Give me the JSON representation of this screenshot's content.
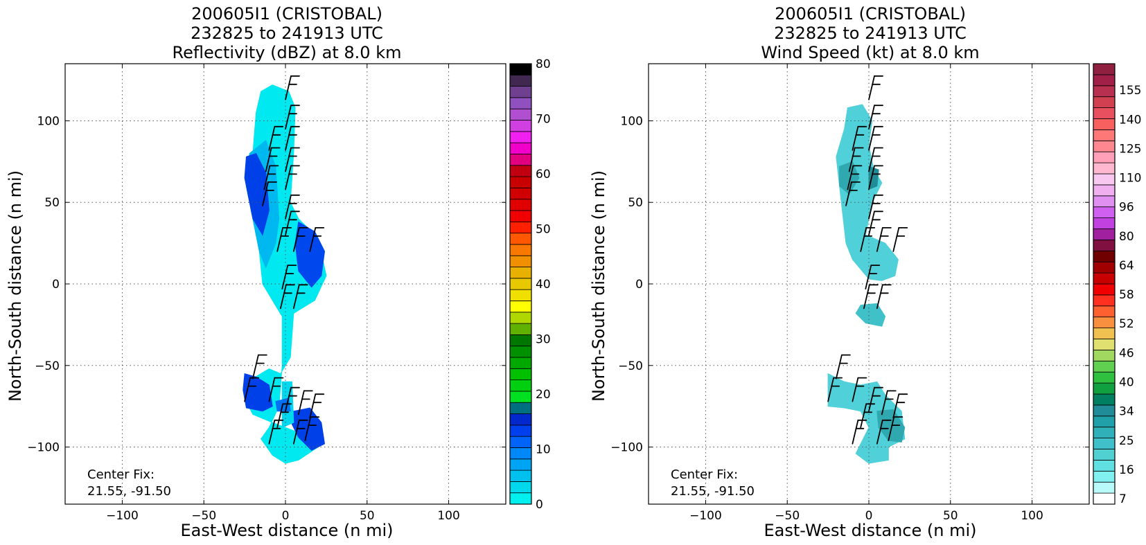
{
  "chart_data": [
    {
      "type": "heatmap",
      "title_lines": [
        "200605I1 (CRISTOBAL)",
        "232825 to 241913 UTC",
        "Reflectivity (dBZ) at 8.0 km"
      ],
      "xlabel": "East-West distance (n mi)",
      "ylabel": "North-South distance (n mi)",
      "xlim": [
        -135,
        135
      ],
      "ylim": [
        -135,
        135
      ],
      "xticks": [
        -100,
        -50,
        0,
        50,
        100
      ],
      "yticks": [
        -100,
        -50,
        0,
        50,
        100
      ],
      "grid": true,
      "annotation": [
        "Center Fix:",
        "21.55, -91.50"
      ],
      "colorbar": {
        "ticks": [
          "0",
          "10",
          "20",
          "30",
          "40",
          "50",
          "60",
          "70",
          "80"
        ],
        "colors": [
          "#00f0f0",
          "#00d8ec",
          "#00c0ee",
          "#00a4f4",
          "#0088f8",
          "#0064f8",
          "#0040ec",
          "#0028cc",
          "#007080",
          "#00e020",
          "#00d010",
          "#00c000",
          "#00a800",
          "#009000",
          "#007800",
          "#60b000",
          "#b0d800",
          "#ffff00",
          "#f0e000",
          "#e8c800",
          "#e8b000",
          "#f09000",
          "#f87800",
          "#ff5800",
          "#ff2000",
          "#f00000",
          "#e00000",
          "#d00000",
          "#c80000",
          "#c00010",
          "#e00080",
          "#f000c8",
          "#f020f0",
          "#d040e0",
          "#b050d0",
          "#9050c0",
          "#704090",
          "#402850",
          "#000000"
        ]
      },
      "field_color": "#00e0f0",
      "regions": [
        {
          "color": "#00e8f0",
          "points": [
            [
              -15,
              118
            ],
            [
              -8,
              122
            ],
            [
              2,
              118
            ],
            [
              6,
              108
            ],
            [
              5,
              80
            ],
            [
              3,
              50
            ],
            [
              8,
              40
            ],
            [
              20,
              28
            ],
            [
              25,
              5
            ],
            [
              18,
              -10
            ],
            [
              5,
              -18
            ],
            [
              3,
              -45
            ],
            [
              -3,
              -55
            ],
            [
              -10,
              -52
            ],
            [
              -20,
              -58
            ],
            [
              -25,
              -70
            ],
            [
              -20,
              -80
            ],
            [
              -8,
              -85
            ],
            [
              5,
              -90
            ],
            [
              15,
              -95
            ],
            [
              20,
              -100
            ],
            [
              8,
              -108
            ],
            [
              0,
              -110
            ],
            [
              -8,
              -105
            ],
            [
              -15,
              -95
            ],
            [
              -10,
              -88
            ],
            [
              -4,
              -75
            ],
            [
              -2,
              -50
            ],
            [
              -2,
              -20
            ],
            [
              -8,
              -10
            ],
            [
              -14,
              0
            ],
            [
              -16,
              20
            ],
            [
              -24,
              60
            ],
            [
              -20,
              80
            ],
            [
              -18,
              105
            ]
          ]
        },
        {
          "color": "#00b8f0",
          "points": [
            [
              -22,
              80
            ],
            [
              -12,
              88
            ],
            [
              -6,
              72
            ],
            [
              -4,
              40
            ],
            [
              -6,
              25
            ],
            [
              -12,
              10
            ],
            [
              -16,
              20
            ],
            [
              -24,
              60
            ]
          ]
        },
        {
          "color": "#0040e8",
          "points": [
            [
              -24,
              78
            ],
            [
              -18,
              80
            ],
            [
              -12,
              68
            ],
            [
              -10,
              45
            ],
            [
              -14,
              30
            ],
            [
              -20,
              40
            ],
            [
              -25,
              65
            ]
          ]
        },
        {
          "color": "#0048ee",
          "points": [
            [
              8,
              38
            ],
            [
              18,
              32
            ],
            [
              24,
              20
            ],
            [
              22,
              5
            ],
            [
              16,
              -2
            ],
            [
              8,
              8
            ],
            [
              6,
              25
            ]
          ]
        },
        {
          "color": "#0040e8",
          "points": [
            [
              -25,
              -55
            ],
            [
              -18,
              -57
            ],
            [
              -10,
              -62
            ],
            [
              -8,
              -75
            ],
            [
              -14,
              -78
            ],
            [
              -24,
              -76
            ],
            [
              -26,
              -65
            ]
          ]
        },
        {
          "color": "#0040e8",
          "points": [
            [
              5,
              -78
            ],
            [
              15,
              -76
            ],
            [
              22,
              -85
            ],
            [
              24,
              -98
            ],
            [
              16,
              -102
            ],
            [
              8,
              -94
            ],
            [
              4,
              -86
            ]
          ]
        },
        {
          "color": "#00d8f0",
          "points": [
            [
              -2,
              -60
            ],
            [
              4,
              -60
            ],
            [
              5,
              -85
            ],
            [
              -2,
              -88
            ]
          ]
        },
        {
          "color": "#0070f4",
          "points": [
            [
              -6,
              -72
            ],
            [
              2,
              -70
            ],
            [
              3,
              -78
            ],
            [
              -5,
              -78
            ]
          ]
        }
      ]
    },
    {
      "type": "heatmap",
      "title_lines": [
        "200605I1 (CRISTOBAL)",
        "232825 to 241913 UTC",
        "Wind Speed (kt) at 8.0 km"
      ],
      "xlabel": "East-West distance (n mi)",
      "ylabel": "North-South distance (n mi)",
      "xlim": [
        -135,
        135
      ],
      "ylim": [
        -135,
        135
      ],
      "xticks": [
        -100,
        -50,
        0,
        50,
        100
      ],
      "yticks": [
        -100,
        -50,
        0,
        50,
        100
      ],
      "grid": true,
      "annotation": [
        "Center Fix:",
        "21.55, -91.50"
      ],
      "colorbar": {
        "ticks": [
          "7",
          "16",
          "25",
          "34",
          "40",
          "46",
          "52",
          "58",
          "64",
          "80",
          "96",
          "110",
          "125",
          "140",
          "155"
        ],
        "colors": [
          "#ffffff",
          "#b8fafa",
          "#80f0f0",
          "#60e0e0",
          "#50d0d0",
          "#40c0c8",
          "#30b0b8",
          "#20a0a8",
          "#208c98",
          "#008060",
          "#10a040",
          "#30c040",
          "#60d050",
          "#a0d860",
          "#e0e070",
          "#f0c050",
          "#f89040",
          "#ff6030",
          "#ff3020",
          "#f00000",
          "#c80000",
          "#a00000",
          "#700000",
          "#801040",
          "#a020a0",
          "#c040e0",
          "#d060f0",
          "#e090f0",
          "#f0b0f0",
          "#f8c8f0",
          "#ffb8d0",
          "#ffa0b8",
          "#ff8890",
          "#ff7878",
          "#f86060",
          "#e85060",
          "#d04050",
          "#b83050",
          "#a02048",
          "#902040"
        ]
      },
      "field_color": "#50d0d8",
      "regions": [
        {
          "color": "#50d0d8",
          "points": [
            [
              -13,
              108
            ],
            [
              -4,
              110
            ],
            [
              2,
              100
            ],
            [
              0,
              85
            ],
            [
              3,
              70
            ],
            [
              8,
              62
            ],
            [
              2,
              50
            ],
            [
              -2,
              30
            ],
            [
              10,
              25
            ],
            [
              18,
              15
            ],
            [
              16,
              5
            ],
            [
              8,
              2
            ],
            [
              0,
              3
            ],
            [
              -10,
              15
            ],
            [
              -14,
              25
            ],
            [
              -18,
              60
            ],
            [
              -20,
              78
            ],
            [
              -15,
              95
            ]
          ]
        },
        {
          "color": "#40c0c8",
          "points": [
            [
              -5,
              -13
            ],
            [
              5,
              -12
            ],
            [
              10,
              -20
            ],
            [
              8,
              -26
            ],
            [
              -2,
              -24
            ],
            [
              -8,
              -18
            ]
          ]
        },
        {
          "color": "#50d0d8",
          "points": [
            [
              -25,
              -55
            ],
            [
              -15,
              -60
            ],
            [
              -5,
              -62
            ],
            [
              5,
              -60
            ],
            [
              10,
              -68
            ],
            [
              20,
              -78
            ],
            [
              22,
              -95
            ],
            [
              12,
              -100
            ],
            [
              12,
              -108
            ],
            [
              0,
              -110
            ],
            [
              -8,
              -104
            ],
            [
              -4,
              -96
            ],
            [
              0,
              -88
            ],
            [
              -5,
              -78
            ],
            [
              -15,
              -76
            ],
            [
              -25,
              -75
            ]
          ]
        },
        {
          "color": "#30a8b0",
          "points": [
            [
              5,
              -78
            ],
            [
              15,
              -77
            ],
            [
              22,
              -88
            ],
            [
              20,
              -97
            ],
            [
              12,
              -96
            ],
            [
              6,
              -88
            ]
          ]
        },
        {
          "color": "#30a8b0",
          "points": [
            [
              -18,
              72
            ],
            [
              -10,
              75
            ],
            [
              -6,
              65
            ],
            [
              -12,
              55
            ],
            [
              -18,
              60
            ]
          ]
        },
        {
          "color": "#208c98",
          "points": [
            [
              0,
              72
            ],
            [
              6,
              70
            ],
            [
              5,
              60
            ],
            [
              0,
              58
            ]
          ]
        }
      ]
    }
  ],
  "wind_barbs": [
    [
      0,
      113
    ],
    [
      0,
      95
    ],
    [
      0,
      82
    ],
    [
      -10,
      82
    ],
    [
      0,
      69
    ],
    [
      -12,
      69
    ],
    [
      0,
      58
    ],
    [
      -13,
      58
    ],
    [
      -14,
      48
    ],
    [
      0,
      40
    ],
    [
      0,
      30
    ],
    [
      -5,
      20
    ],
    [
      5,
      20
    ],
    [
      15,
      20
    ],
    [
      -2,
      -3
    ],
    [
      -3,
      -15
    ],
    [
      5,
      -15
    ],
    [
      -20,
      -58
    ],
    [
      -25,
      -72
    ],
    [
      -10,
      -72
    ],
    [
      0,
      -78
    ],
    [
      8,
      -80
    ],
    [
      15,
      -82
    ],
    [
      -5,
      -88
    ],
    [
      -10,
      -98
    ],
    [
      5,
      -98
    ],
    [
      12,
      -96
    ]
  ]
}
